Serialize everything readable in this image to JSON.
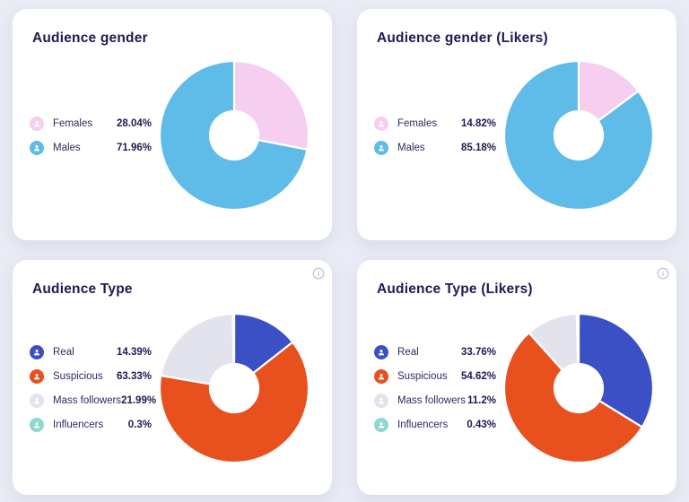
{
  "page": {
    "background_color": "#e9ecf4",
    "card_background_color": "#ffffff",
    "title_color": "#1d1b52",
    "info_icon_color": "#b9bed9"
  },
  "cards": [
    {
      "title": "Audience gender",
      "has_info_icon": false,
      "legend": [
        {
          "label": "Females",
          "percent": "28.04%",
          "value": 28.04,
          "color": "#f6cef0"
        },
        {
          "label": "Males",
          "percent": "71.96%",
          "value": 71.96,
          "color": "#5fbce8"
        }
      ]
    },
    {
      "title": "Audience gender (Likers)",
      "has_info_icon": false,
      "legend": [
        {
          "label": "Females",
          "percent": "14.82%",
          "value": 14.82,
          "color": "#f6cef0"
        },
        {
          "label": "Males",
          "percent": "85.18%",
          "value": 85.18,
          "color": "#5fbce8"
        }
      ]
    },
    {
      "title": "Audience Type",
      "has_info_icon": true,
      "legend": [
        {
          "label": "Real",
          "percent": "14.39%",
          "value": 14.39,
          "color": "#3a50c4"
        },
        {
          "label": "Suspicious",
          "percent": "63.33%",
          "value": 63.33,
          "color": "#e8511e"
        },
        {
          "label": "Mass followers",
          "percent": "21.99%",
          "value": 21.99,
          "color": "#e3e3ee"
        },
        {
          "label": "Influencers",
          "percent": "0.3%",
          "value": 0.3,
          "color": "#8fd8d2"
        }
      ]
    },
    {
      "title": "Audience Type (Likers)",
      "has_info_icon": true,
      "legend": [
        {
          "label": "Real",
          "percent": "33.76%",
          "value": 33.76,
          "color": "#3a50c4"
        },
        {
          "label": "Suspicious",
          "percent": "54.62%",
          "value": 54.62,
          "color": "#e8511e"
        },
        {
          "label": "Mass followers",
          "percent": "11.2%",
          "value": 11.2,
          "color": "#e3e3ee"
        },
        {
          "label": "Influencers",
          "percent": "0.43%",
          "value": 0.43,
          "color": "#8fd8d2"
        }
      ]
    }
  ],
  "chart_data": [
    {
      "type": "pie",
      "variant": "donut",
      "title": "Audience gender",
      "labels": [
        "Females",
        "Males"
      ],
      "values": [
        28.04,
        71.96
      ],
      "colors": [
        "#f6cef0",
        "#5fbce8"
      ],
      "start_angle_deg": -90,
      "direction": "clockwise",
      "legend_position": "left"
    },
    {
      "type": "pie",
      "variant": "donut",
      "title": "Audience gender (Likers)",
      "labels": [
        "Females",
        "Males"
      ],
      "values": [
        14.82,
        85.18
      ],
      "colors": [
        "#f6cef0",
        "#5fbce8"
      ],
      "start_angle_deg": -90,
      "direction": "clockwise",
      "legend_position": "left"
    },
    {
      "type": "pie",
      "variant": "donut",
      "title": "Audience Type",
      "labels": [
        "Real",
        "Suspicious",
        "Mass followers",
        "Influencers"
      ],
      "values": [
        14.39,
        63.33,
        21.99,
        0.3
      ],
      "colors": [
        "#3a50c4",
        "#e8511e",
        "#e3e3ee",
        "#8fd8d2"
      ],
      "start_angle_deg": -90,
      "direction": "clockwise",
      "legend_position": "left"
    },
    {
      "type": "pie",
      "variant": "donut",
      "title": "Audience Type (Likers)",
      "labels": [
        "Real",
        "Suspicious",
        "Mass followers",
        "Influencers"
      ],
      "values": [
        33.76,
        54.62,
        11.2,
        0.43
      ],
      "colors": [
        "#3a50c4",
        "#e8511e",
        "#e3e3ee",
        "#8fd8d2"
      ],
      "start_angle_deg": -90,
      "direction": "clockwise",
      "legend_position": "left"
    }
  ]
}
